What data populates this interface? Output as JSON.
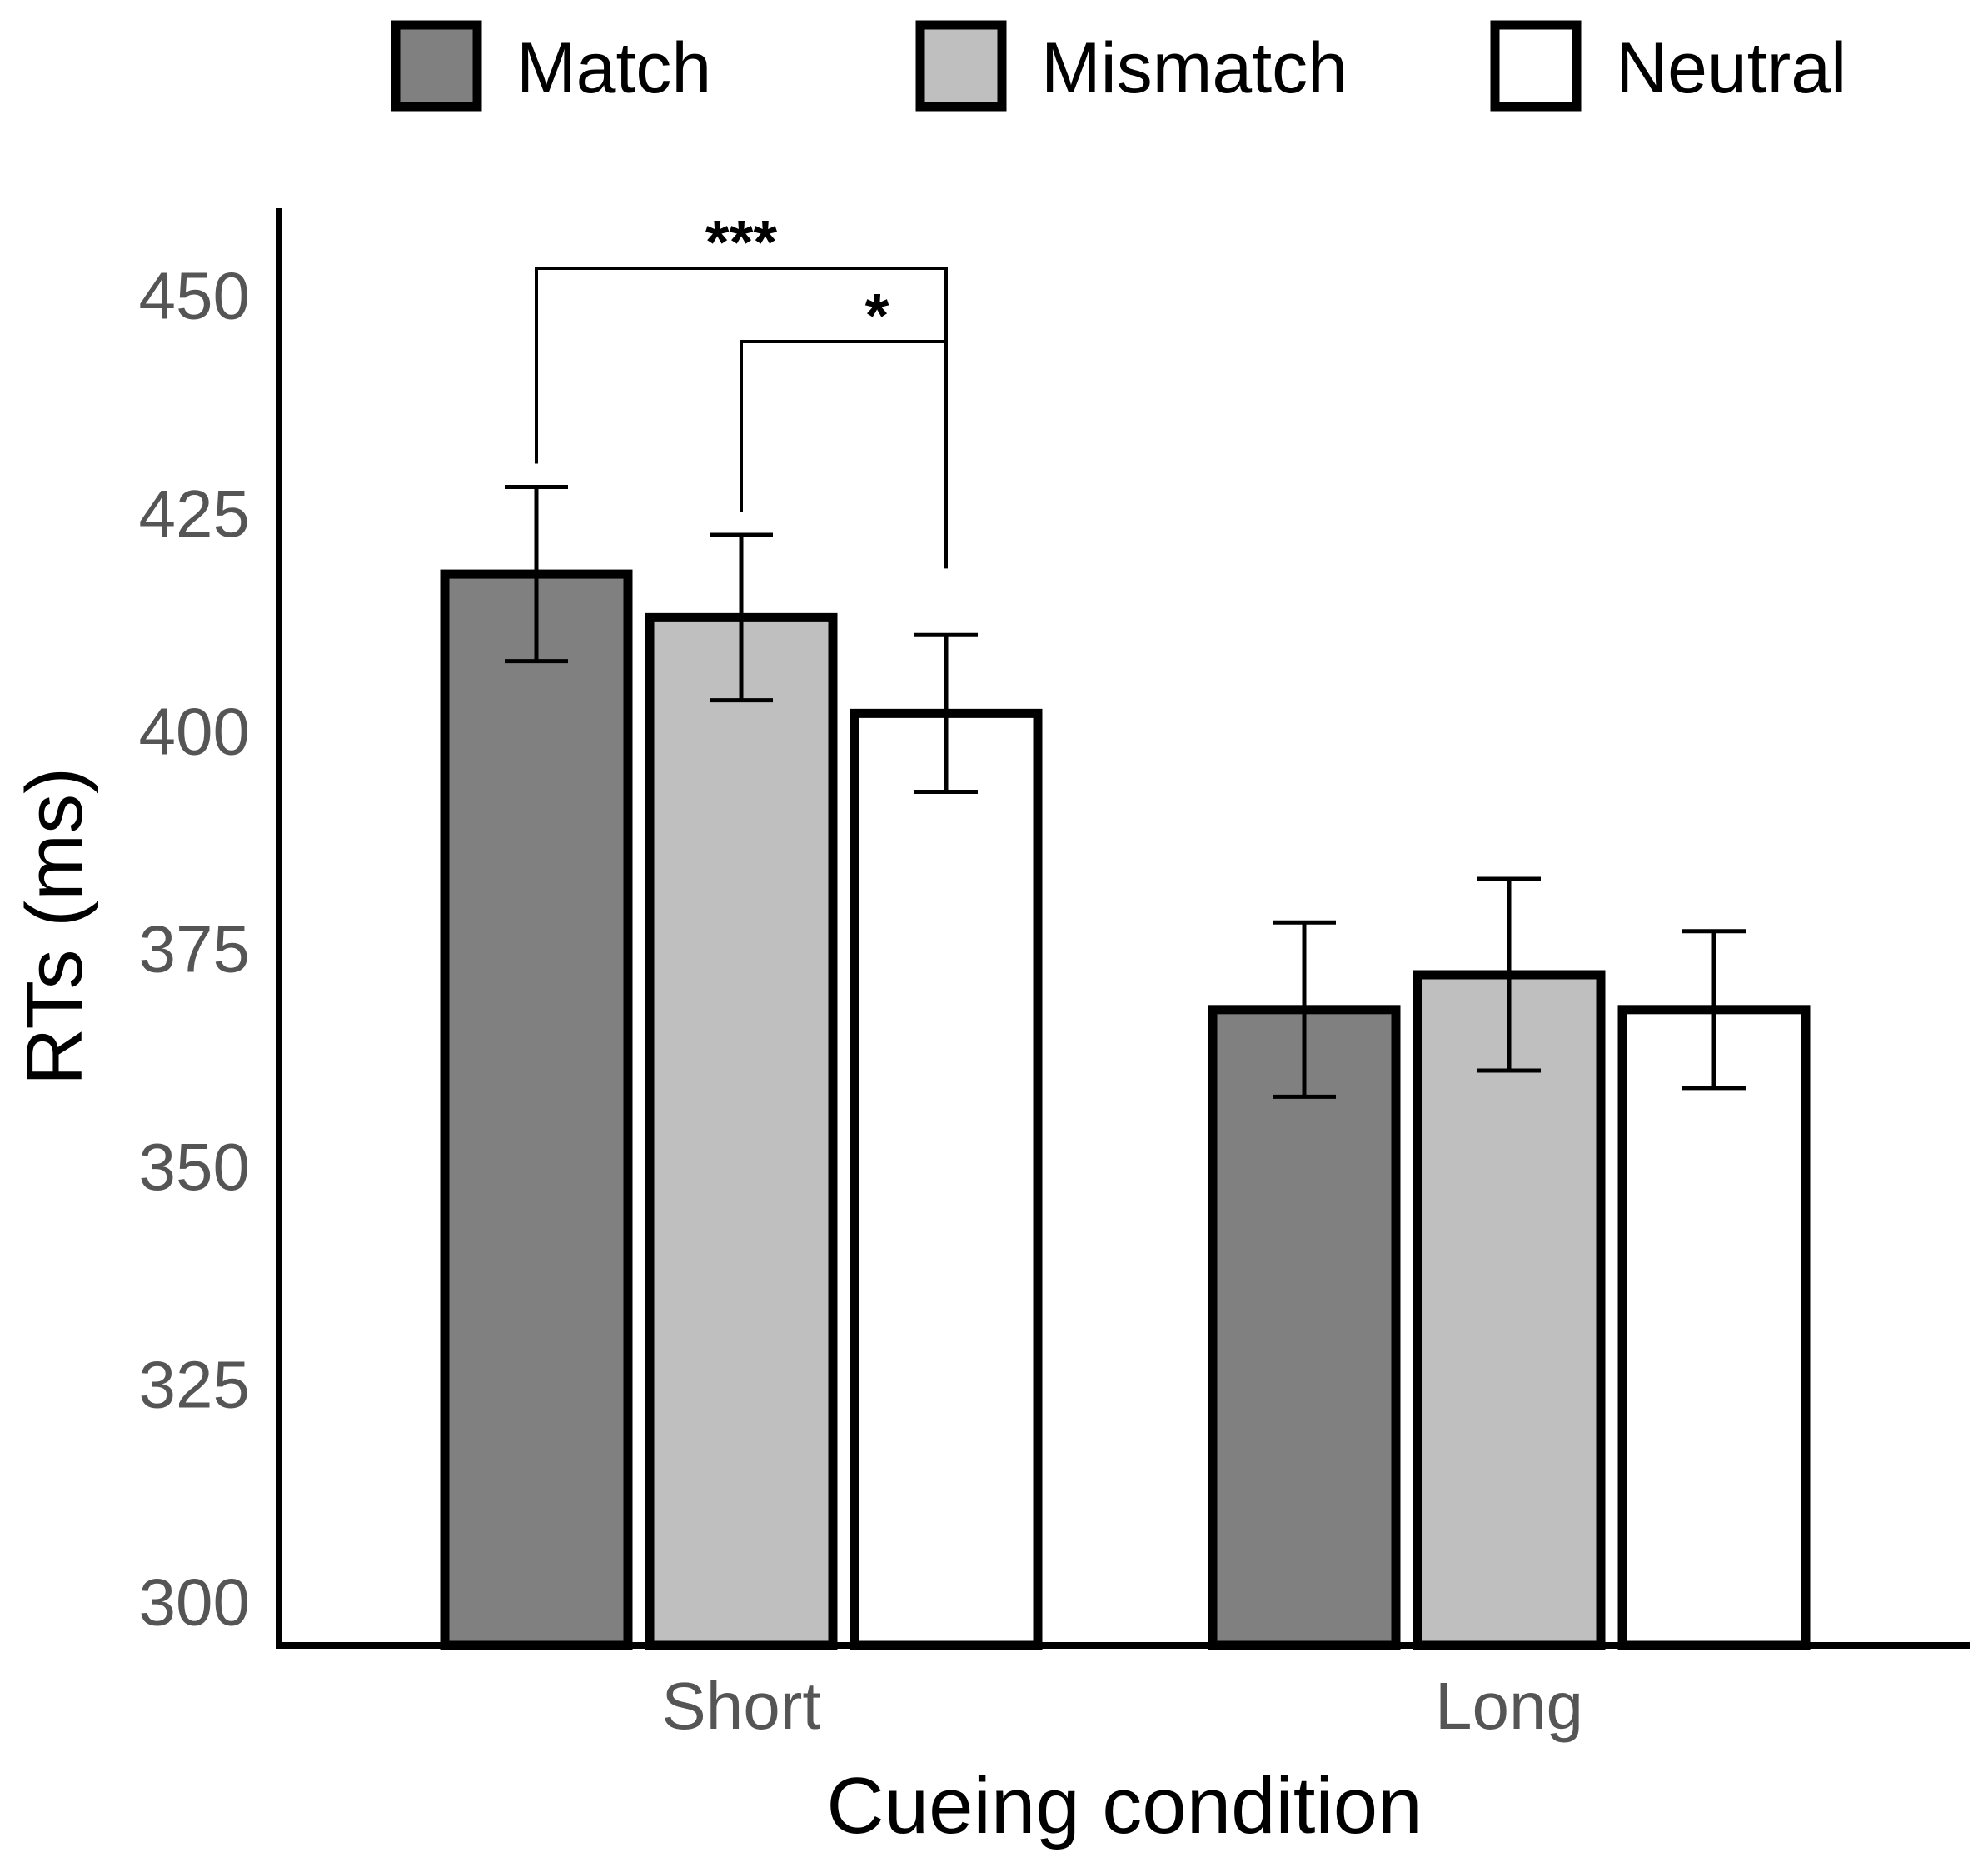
{
  "chart_data": {
    "type": "bar",
    "title": "",
    "xlabel": "Cueing condition",
    "ylabel": "RTs (ms)",
    "ylim": [
      295,
      460
    ],
    "yticks": [
      "300",
      "325",
      "350",
      "375",
      "400",
      "425",
      "450"
    ],
    "categories": [
      "Short",
      "Long"
    ],
    "series": [
      {
        "name": "Match",
        "color": "#808080",
        "values": [
          418,
          368
        ],
        "errors": [
          10,
          10
        ]
      },
      {
        "name": "Mismatch",
        "color": "#bfbfbf",
        "values": [
          413,
          372
        ],
        "errors": [
          9.5,
          11
        ]
      },
      {
        "name": "Neutral",
        "color": "#ffffff",
        "values": [
          402,
          368
        ],
        "errors": [
          9,
          9
        ]
      }
    ],
    "legend_position": "top",
    "significance": [
      {
        "label": "***",
        "category": "Short",
        "from": "Match",
        "to": "Neutral"
      },
      {
        "label": "*",
        "category": "Short",
        "from": "Mismatch",
        "to": "Neutral"
      }
    ]
  }
}
